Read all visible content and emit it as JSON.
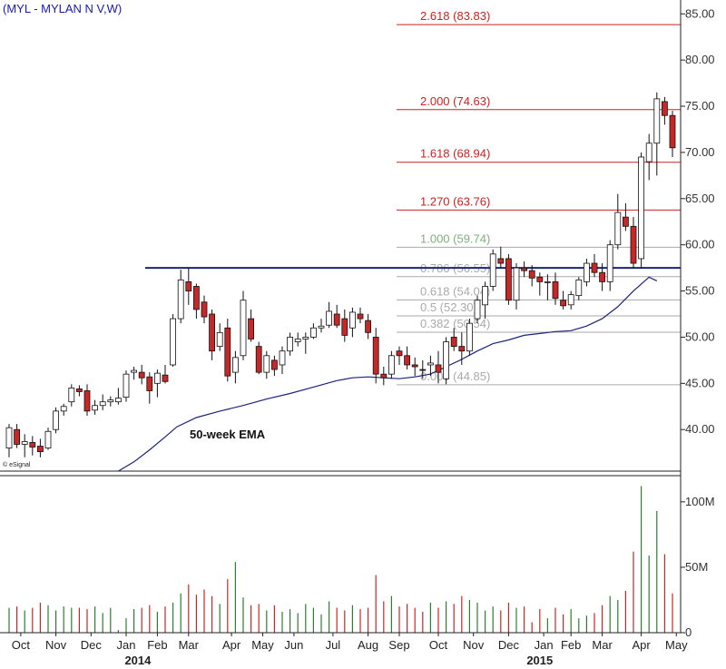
{
  "chart_data": {
    "type": "candlestick",
    "title": "(MYL - MYLAN N V,W)",
    "credit": "© eSignal",
    "price_axis": {
      "ylim": [
        35.5,
        86.5
      ],
      "ticks": [
        "85.00",
        "80.00",
        "75.00",
        "70.00",
        "65.00",
        "60.00",
        "55.00",
        "50.00",
        "45.00",
        "40.00"
      ],
      "tick_values": [
        85,
        80,
        75,
        70,
        65,
        60,
        55,
        50,
        45,
        40
      ]
    },
    "volume_axis": {
      "ylim": [
        0,
        120
      ],
      "unit": "M",
      "ticks": [
        "100M",
        "50M",
        "0"
      ],
      "tick_values": [
        100,
        50,
        0
      ]
    },
    "x_ticks": [
      "Oct",
      "Nov",
      "Dec",
      "Jan",
      "Feb",
      "Mar",
      "Apr",
      "May",
      "Jun",
      "Jul",
      "Aug",
      "Sep",
      "Oct",
      "Nov",
      "Dec",
      "Jan",
      "Feb",
      "Mar",
      "Apr",
      "May"
    ],
    "x_tick_weeks": [
      1.5,
      6,
      10.5,
      15,
      19,
      23,
      28.5,
      32.5,
      36.5,
      41.5,
      46,
      50,
      55,
      59.5,
      64,
      68.5,
      72,
      76,
      81,
      85.5
    ],
    "years": [
      "2014",
      "2015"
    ],
    "year_weeks": [
      16.5,
      68
    ],
    "resistance_level": 57.5,
    "fib_levels": [
      {
        "label": "2.618 (83.83)",
        "value": 83.83,
        "color": "#cc2222",
        "line": "#cc2222"
      },
      {
        "label": "2.000 (74.63)",
        "value": 74.63,
        "color": "#cc2222",
        "line": "#cc2222"
      },
      {
        "label": "1.618 (68.94)",
        "value": 68.94,
        "color": "#cc2222",
        "line": "#cc2222"
      },
      {
        "label": "1.270 (63.76)",
        "value": 63.76,
        "color": "#cc2222",
        "line": "#cc2222"
      },
      {
        "label": "1.000 (59.74)",
        "value": 59.74,
        "color": "#7faf7f",
        "line": "#aaaaaa"
      },
      {
        "label": "0.786 (56.55)",
        "value": 56.55,
        "color": "#aaaaaa",
        "line": "#aaaaaa"
      },
      {
        "label": "0.618 (54.04)",
        "value": 54.04,
        "color": "#aaaaaa",
        "line": "#aaaaaa"
      },
      {
        "label": "0.5 (52.30)",
        "value": 52.3,
        "color": "#aaaaaa",
        "line": "#aaaaaa"
      },
      {
        "label": "0.382 (50.54)",
        "value": 50.54,
        "color": "#aaaaaa",
        "line": "#aaaaaa"
      },
      {
        "label": "0.000 (44.85)",
        "value": 44.85,
        "color": "#aaaaaa",
        "line": "#aaaaaa"
      }
    ],
    "ema_label": "50-week EMA",
    "ema": [
      [
        14,
        35.5
      ],
      [
        16,
        36.5
      ],
      [
        18,
        37.8
      ],
      [
        20,
        39.2
      ],
      [
        21.5,
        40.3
      ],
      [
        24,
        41.3
      ],
      [
        27,
        42.0
      ],
      [
        30,
        42.6
      ],
      [
        33,
        43.3
      ],
      [
        36,
        43.9
      ],
      [
        39,
        44.6
      ],
      [
        42,
        45.3
      ],
      [
        44,
        45.6
      ],
      [
        46,
        45.7
      ],
      [
        48,
        45.6
      ],
      [
        50,
        45.5
      ],
      [
        52,
        45.7
      ],
      [
        54,
        46.0
      ],
      [
        56,
        46.8
      ],
      [
        58,
        47.6
      ],
      [
        60,
        48.5
      ],
      [
        62,
        49.3
      ],
      [
        64,
        49.7
      ],
      [
        66,
        50.2
      ],
      [
        68,
        50.4
      ],
      [
        70,
        50.6
      ],
      [
        72,
        50.7
      ],
      [
        74,
        51.2
      ],
      [
        76,
        52.0
      ],
      [
        78,
        53.3
      ],
      [
        80,
        55.0
      ],
      [
        82,
        56.5
      ],
      [
        83,
        56.1
      ]
    ],
    "candles": [
      {
        "o": 38,
        "h": 40.6,
        "l": 37,
        "c": 40.2,
        "v": 19
      },
      {
        "o": 40.0,
        "h": 40.6,
        "l": 38,
        "c": 38.4,
        "v": 20
      },
      {
        "o": 38.4,
        "h": 39.5,
        "l": 37,
        "c": 38.7,
        "v": 17
      },
      {
        "o": 38.6,
        "h": 39.3,
        "l": 37.2,
        "c": 38.1,
        "v": 19
      },
      {
        "o": 38.2,
        "h": 39.0,
        "l": 37.0,
        "c": 37.6,
        "v": 23
      },
      {
        "o": 38.0,
        "h": 40.2,
        "l": 37.8,
        "c": 39.8,
        "v": 21
      },
      {
        "o": 40.0,
        "h": 42.4,
        "l": 39.6,
        "c": 42.0,
        "v": 17
      },
      {
        "o": 42.0,
        "h": 42.8,
        "l": 41.5,
        "c": 42.5,
        "v": 20
      },
      {
        "o": 43.0,
        "h": 44.9,
        "l": 42.5,
        "c": 44.5,
        "v": 19
      },
      {
        "o": 44.4,
        "h": 44.8,
        "l": 43.6,
        "c": 44.1,
        "v": 19
      },
      {
        "o": 44.2,
        "h": 44.9,
        "l": 41.5,
        "c": 42.0,
        "v": 18
      },
      {
        "o": 42.1,
        "h": 43.2,
        "l": 41.6,
        "c": 42.6,
        "v": 20
      },
      {
        "o": 42.6,
        "h": 43.8,
        "l": 42.1,
        "c": 43.0,
        "v": 15
      },
      {
        "o": 43.0,
        "h": 43.6,
        "l": 42.5,
        "c": 43.2,
        "v": 19
      },
      {
        "o": 43.0,
        "h": 44.5,
        "l": 42.7,
        "c": 43.4,
        "v": 2
      },
      {
        "o": 43.5,
        "h": 46.4,
        "l": 43.0,
        "c": 46.0,
        "v": 11
      },
      {
        "o": 46.2,
        "h": 46.8,
        "l": 45.4,
        "c": 46.4,
        "v": 18
      },
      {
        "o": 46.2,
        "h": 47.0,
        "l": 44.9,
        "c": 45.6,
        "v": 19
      },
      {
        "o": 45.7,
        "h": 46.2,
        "l": 42.8,
        "c": 44.2,
        "v": 21
      },
      {
        "o": 45.0,
        "h": 46.5,
        "l": 43.5,
        "c": 46.1,
        "v": 16
      },
      {
        "o": 45.9,
        "h": 47.0,
        "l": 45.0,
        "c": 45.2,
        "v": 20
      },
      {
        "o": 47.0,
        "h": 52.5,
        "l": 46.8,
        "c": 52.0,
        "v": 23
      },
      {
        "o": 52.0,
        "h": 57.3,
        "l": 51.5,
        "c": 56.2,
        "v": 30
      },
      {
        "o": 56.0,
        "h": 57.5,
        "l": 53.5,
        "c": 55.0,
        "v": 37
      },
      {
        "o": 55.5,
        "h": 55.8,
        "l": 52.0,
        "c": 53.0,
        "v": 29
      },
      {
        "o": 53.8,
        "h": 54.5,
        "l": 51.5,
        "c": 52.2,
        "v": 33
      },
      {
        "o": 52.5,
        "h": 53.0,
        "l": 47.5,
        "c": 48.5,
        "v": 28
      },
      {
        "o": 49.0,
        "h": 51.5,
        "l": 48.5,
        "c": 50.5,
        "v": 22
      },
      {
        "o": 51.0,
        "h": 52.0,
        "l": 45.2,
        "c": 45.8,
        "v": 41
      },
      {
        "o": 46.2,
        "h": 48.5,
        "l": 45.0,
        "c": 47.8,
        "v": 54
      },
      {
        "o": 48.0,
        "h": 55.0,
        "l": 47.5,
        "c": 54.0,
        "v": 27
      },
      {
        "o": 52.0,
        "h": 53.0,
        "l": 49.5,
        "c": 49.8,
        "v": 21
      },
      {
        "o": 49.0,
        "h": 49.5,
        "l": 46.0,
        "c": 46.2,
        "v": 22
      },
      {
        "o": 46.2,
        "h": 48.5,
        "l": 45.5,
        "c": 48.0,
        "v": 17
      },
      {
        "o": 47.5,
        "h": 48.0,
        "l": 45.8,
        "c": 46.5,
        "v": 21
      },
      {
        "o": 47.0,
        "h": 49.0,
        "l": 46.0,
        "c": 48.5,
        "v": 16
      },
      {
        "o": 48.5,
        "h": 50.5,
        "l": 48.0,
        "c": 50.0,
        "v": 18
      },
      {
        "o": 49.5,
        "h": 50.5,
        "l": 49.0,
        "c": 49.8,
        "v": 15
      },
      {
        "o": 49.8,
        "h": 50.5,
        "l": 48.2,
        "c": 50.0,
        "v": 22
      },
      {
        "o": 50.0,
        "h": 51.5,
        "l": 49.8,
        "c": 51.0,
        "v": 19
      },
      {
        "o": 51.0,
        "h": 52.0,
        "l": 50.5,
        "c": 51.2,
        "v": 14
      },
      {
        "o": 51.3,
        "h": 53.8,
        "l": 51.0,
        "c": 52.8,
        "v": 24
      },
      {
        "o": 52.5,
        "h": 53.5,
        "l": 51.0,
        "c": 51.3,
        "v": 19
      },
      {
        "o": 52.0,
        "h": 53.0,
        "l": 49.5,
        "c": 50.2,
        "v": 17
      },
      {
        "o": 51.0,
        "h": 53.2,
        "l": 50.0,
        "c": 52.7,
        "v": 21
      },
      {
        "o": 52.5,
        "h": 53.2,
        "l": 51.5,
        "c": 52.0,
        "v": 18
      },
      {
        "o": 51.8,
        "h": 52.5,
        "l": 49.8,
        "c": 50.5,
        "v": 19
      },
      {
        "o": 50.0,
        "h": 51.0,
        "l": 45.0,
        "c": 46.0,
        "v": 44
      },
      {
        "o": 46.0,
        "h": 46.8,
        "l": 44.8,
        "c": 45.6,
        "v": 24
      },
      {
        "o": 46.0,
        "h": 48.5,
        "l": 45.5,
        "c": 48.0,
        "v": 28
      },
      {
        "o": 48.5,
        "h": 49.0,
        "l": 47.0,
        "c": 48.0,
        "v": 20
      },
      {
        "o": 48.0,
        "h": 49.0,
        "l": 46.5,
        "c": 47.0,
        "v": 22
      },
      {
        "o": 47.0,
        "h": 47.8,
        "l": 45.8,
        "c": 46.8,
        "v": 19
      },
      {
        "o": 46.5,
        "h": 47.5,
        "l": 45.5,
        "c": 46.4,
        "v": 16
      },
      {
        "o": 47.0,
        "h": 48.0,
        "l": 45.8,
        "c": 47.2,
        "v": 23
      },
      {
        "o": 47.0,
        "h": 48.5,
        "l": 45.0,
        "c": 46.2,
        "v": 19
      },
      {
        "o": 45.5,
        "h": 50.0,
        "l": 44.9,
        "c": 49.5,
        "v": 24
      },
      {
        "o": 50.0,
        "h": 51.0,
        "l": 48.5,
        "c": 49.0,
        "v": 22
      },
      {
        "o": 49.0,
        "h": 50.5,
        "l": 47.0,
        "c": 48.5,
        "v": 28
      },
      {
        "o": 48.5,
        "h": 52.0,
        "l": 48.0,
        "c": 51.5,
        "v": 25
      },
      {
        "o": 52.0,
        "h": 54.5,
        "l": 51.5,
        "c": 54.0,
        "v": 23
      },
      {
        "o": 53.5,
        "h": 56.0,
        "l": 52.0,
        "c": 55.5,
        "v": 17
      },
      {
        "o": 55.5,
        "h": 59.5,
        "l": 55.0,
        "c": 59.0,
        "v": 20
      },
      {
        "o": 58.5,
        "h": 59.8,
        "l": 57.5,
        "c": 58.0,
        "v": 17
      },
      {
        "o": 58.5,
        "h": 59.0,
        "l": 53.5,
        "c": 54.0,
        "v": 23
      },
      {
        "o": 54.0,
        "h": 58.0,
        "l": 53.0,
        "c": 57.5,
        "v": 19
      },
      {
        "o": 57.5,
        "h": 58.2,
        "l": 56.5,
        "c": 57.2,
        "v": 20
      },
      {
        "o": 57.2,
        "h": 57.8,
        "l": 55.5,
        "c": 56.4,
        "v": 8
      },
      {
        "o": 56.5,
        "h": 57.0,
        "l": 54.5,
        "c": 56.0,
        "v": 18
      },
      {
        "o": 56.0,
        "h": 56.8,
        "l": 54.0,
        "c": 56.0,
        "v": 11
      },
      {
        "o": 56.0,
        "h": 57.0,
        "l": 53.5,
        "c": 54.2,
        "v": 19
      },
      {
        "o": 54.0,
        "h": 55.0,
        "l": 53.0,
        "c": 53.4,
        "v": 14
      },
      {
        "o": 53.5,
        "h": 55.0,
        "l": 53.0,
        "c": 54.6,
        "v": 18
      },
      {
        "o": 54.5,
        "h": 56.5,
        "l": 54.0,
        "c": 56.2,
        "v": 11
      },
      {
        "o": 56.0,
        "h": 58.5,
        "l": 55.5,
        "c": 58.0,
        "v": 13
      },
      {
        "o": 58.0,
        "h": 59.0,
        "l": 56.5,
        "c": 57.0,
        "v": 15
      },
      {
        "o": 57.0,
        "h": 58.0,
        "l": 55.0,
        "c": 56.0,
        "v": 21
      },
      {
        "o": 56.0,
        "h": 60.5,
        "l": 55.0,
        "c": 60.0,
        "v": 28
      },
      {
        "o": 60.0,
        "h": 65.5,
        "l": 59.5,
        "c": 63.5,
        "v": 25
      },
      {
        "o": 63.0,
        "h": 64.5,
        "l": 61.5,
        "c": 62.0,
        "v": 32
      },
      {
        "o": 62.0,
        "h": 63.0,
        "l": 57.5,
        "c": 58.0,
        "v": 62
      },
      {
        "o": 58.5,
        "h": 70.0,
        "l": 57.5,
        "c": 69.5,
        "v": 112
      },
      {
        "o": 69.0,
        "h": 72.0,
        "l": 67.0,
        "c": 71.0,
        "v": 59
      },
      {
        "o": 71.0,
        "h": 76.5,
        "l": 67.5,
        "c": 75.8,
        "v": 93
      },
      {
        "o": 75.5,
        "h": 76.0,
        "l": 73.0,
        "c": 74.0,
        "v": 60
      },
      {
        "o": 74.0,
        "h": 74.5,
        "l": 69.5,
        "c": 70.5,
        "v": 30
      }
    ]
  }
}
